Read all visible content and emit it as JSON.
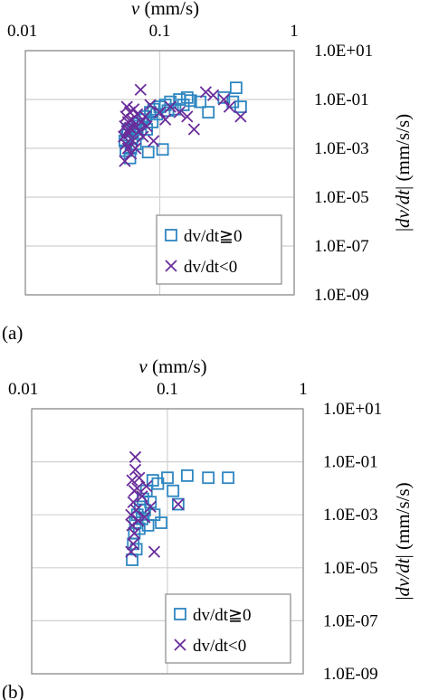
{
  "chart_data": [
    {
      "type": "scatter",
      "panel_label": "(a)",
      "xlabel": "v (mm/s)",
      "ylabel": "|dv/dt| (mm/s/s)",
      "x_scale": "log",
      "y_scale": "log",
      "xlim": [
        0.01,
        1
      ],
      "ylim": [
        1e-09,
        10
      ],
      "x_ticks": [
        "0.01",
        "0.1",
        "1"
      ],
      "y_ticks": [
        "1.0E+01",
        "1.0E-01",
        "1.0E-03",
        "1.0E-05",
        "1.0E-07",
        "1.0E-09"
      ],
      "grid": true,
      "legend_placement": "bottom-right",
      "series": [
        {
          "name": "dv/dt≧0",
          "marker": "square",
          "color": "#2E86C1",
          "points": [
            [
              0.055,
              0.002
            ],
            [
              0.056,
              0.0008
            ],
            [
              0.057,
              0.0035
            ],
            [
              0.058,
              0.006
            ],
            [
              0.06,
              0.0004
            ],
            [
              0.061,
              0.001
            ],
            [
              0.062,
              0.0025
            ],
            [
              0.063,
              0.005
            ],
            [
              0.065,
              0.008
            ],
            [
              0.066,
              0.0015
            ],
            [
              0.068,
              0.004
            ],
            [
              0.07,
              0.01
            ],
            [
              0.072,
              0.006
            ],
            [
              0.075,
              0.015
            ],
            [
              0.078,
              0.02
            ],
            [
              0.08,
              0.006
            ],
            [
              0.082,
              0.0007
            ],
            [
              0.085,
              0.03
            ],
            [
              0.088,
              0.012
            ],
            [
              0.09,
              0.04
            ],
            [
              0.095,
              0.025
            ],
            [
              0.1,
              0.05
            ],
            [
              0.105,
              0.0009
            ],
            [
              0.11,
              0.06
            ],
            [
              0.115,
              0.035
            ],
            [
              0.12,
              0.08
            ],
            [
              0.13,
              0.04
            ],
            [
              0.14,
              0.1
            ],
            [
              0.15,
              0.06
            ],
            [
              0.16,
              0.12
            ],
            [
              0.17,
              0.09
            ],
            [
              0.2,
              0.08
            ],
            [
              0.23,
              0.03
            ],
            [
              0.3,
              0.12
            ],
            [
              0.35,
              0.08
            ],
            [
              0.37,
              0.3
            ],
            [
              0.4,
              0.05
            ]
          ]
        },
        {
          "name": "dv/dt<0",
          "marker": "x",
          "color": "#6A2C9A",
          "points": [
            [
              0.054,
              0.003
            ],
            [
              0.055,
              0.0003
            ],
            [
              0.055,
              0.008
            ],
            [
              0.056,
              0.02
            ],
            [
              0.056,
              0.0015
            ],
            [
              0.057,
              0.005
            ],
            [
              0.057,
              0.05
            ],
            [
              0.058,
              0.001
            ],
            [
              0.058,
              0.012
            ],
            [
              0.059,
              0.004
            ],
            [
              0.06,
              0.03
            ],
            [
              0.06,
              0.007
            ],
            [
              0.061,
              0.0006
            ],
            [
              0.062,
              0.015
            ],
            [
              0.063,
              0.002
            ],
            [
              0.064,
              0.04
            ],
            [
              0.065,
              0.009
            ],
            [
              0.066,
              0.001
            ],
            [
              0.068,
              0.025
            ],
            [
              0.07,
              0.005
            ],
            [
              0.072,
              0.25
            ],
            [
              0.073,
              0.012
            ],
            [
              0.075,
              0.003
            ],
            [
              0.078,
              0.02
            ],
            [
              0.08,
              0.008
            ],
            [
              0.085,
              0.06
            ],
            [
              0.09,
              0.002
            ],
            [
              0.1,
              0.03
            ],
            [
              0.11,
              0.015
            ],
            [
              0.12,
              0.05
            ],
            [
              0.14,
              0.03
            ],
            [
              0.16,
              0.02
            ],
            [
              0.18,
              0.006
            ],
            [
              0.22,
              0.2
            ],
            [
              0.25,
              0.15
            ],
            [
              0.3,
              0.1
            ],
            [
              0.33,
              0.05
            ],
            [
              0.4,
              0.02
            ]
          ]
        }
      ]
    },
    {
      "type": "scatter",
      "panel_label": "(b)",
      "xlabel": "v (mm/s)",
      "ylabel": "|dv/dt| (mm/s/s)",
      "x_scale": "log",
      "y_scale": "log",
      "xlim": [
        0.01,
        1
      ],
      "ylim": [
        1e-09,
        10
      ],
      "x_ticks": [
        "0.01",
        "0.1",
        "1"
      ],
      "y_ticks": [
        "1.0E+01",
        "1.0E-01",
        "1.0E-03",
        "1.0E-05",
        "1.0E-07",
        "1.0E-09"
      ],
      "grid": true,
      "legend_placement": "bottom-right",
      "series": [
        {
          "name": "dv/dt≧0",
          "marker": "square",
          "color": "#2E86C1",
          "points": [
            [
              0.055,
              2e-05
            ],
            [
              0.056,
              8e-05
            ],
            [
              0.057,
              0.0002
            ],
            [
              0.058,
              0.0005
            ],
            [
              0.059,
              5e-05
            ],
            [
              0.06,
              0.001
            ],
            [
              0.062,
              0.0003
            ],
            [
              0.063,
              0.002
            ],
            [
              0.065,
              0.0007
            ],
            [
              0.066,
              0.004
            ],
            [
              0.068,
              0.0015
            ],
            [
              0.07,
              0.008
            ],
            [
              0.072,
              0.0004
            ],
            [
              0.075,
              0.003
            ],
            [
              0.078,
              0.02
            ],
            [
              0.08,
              0.001
            ],
            [
              0.085,
              0.015
            ],
            [
              0.09,
              0.0005
            ],
            [
              0.1,
              0.025
            ],
            [
              0.11,
              0.008
            ],
            [
              0.12,
              0.0025
            ],
            [
              0.14,
              0.03
            ],
            [
              0.2,
              0.025
            ],
            [
              0.28,
              0.025
            ]
          ]
        },
        {
          "name": "dv/dt<0",
          "marker": "x",
          "color": "#6A2C9A",
          "points": [
            [
              0.054,
              0.001
            ],
            [
              0.054,
              4e-05
            ],
            [
              0.055,
              0.0004
            ],
            [
              0.055,
              0.02
            ],
            [
              0.056,
              0.003
            ],
            [
              0.056,
              8e-05
            ],
            [
              0.057,
              0.008
            ],
            [
              0.057,
              0.0002
            ],
            [
              0.058,
              0.15
            ],
            [
              0.058,
              0.05
            ],
            [
              0.059,
              0.0015
            ],
            [
              0.06,
              0.01
            ],
            [
              0.061,
              0.0006
            ],
            [
              0.062,
              0.025
            ],
            [
              0.065,
              0.005
            ],
            [
              0.068,
              0.0008
            ],
            [
              0.07,
              0.012
            ],
            [
              0.075,
              0.002
            ],
            [
              0.08,
              4e-05
            ],
            [
              0.12,
              0.0025
            ]
          ]
        }
      ]
    }
  ]
}
